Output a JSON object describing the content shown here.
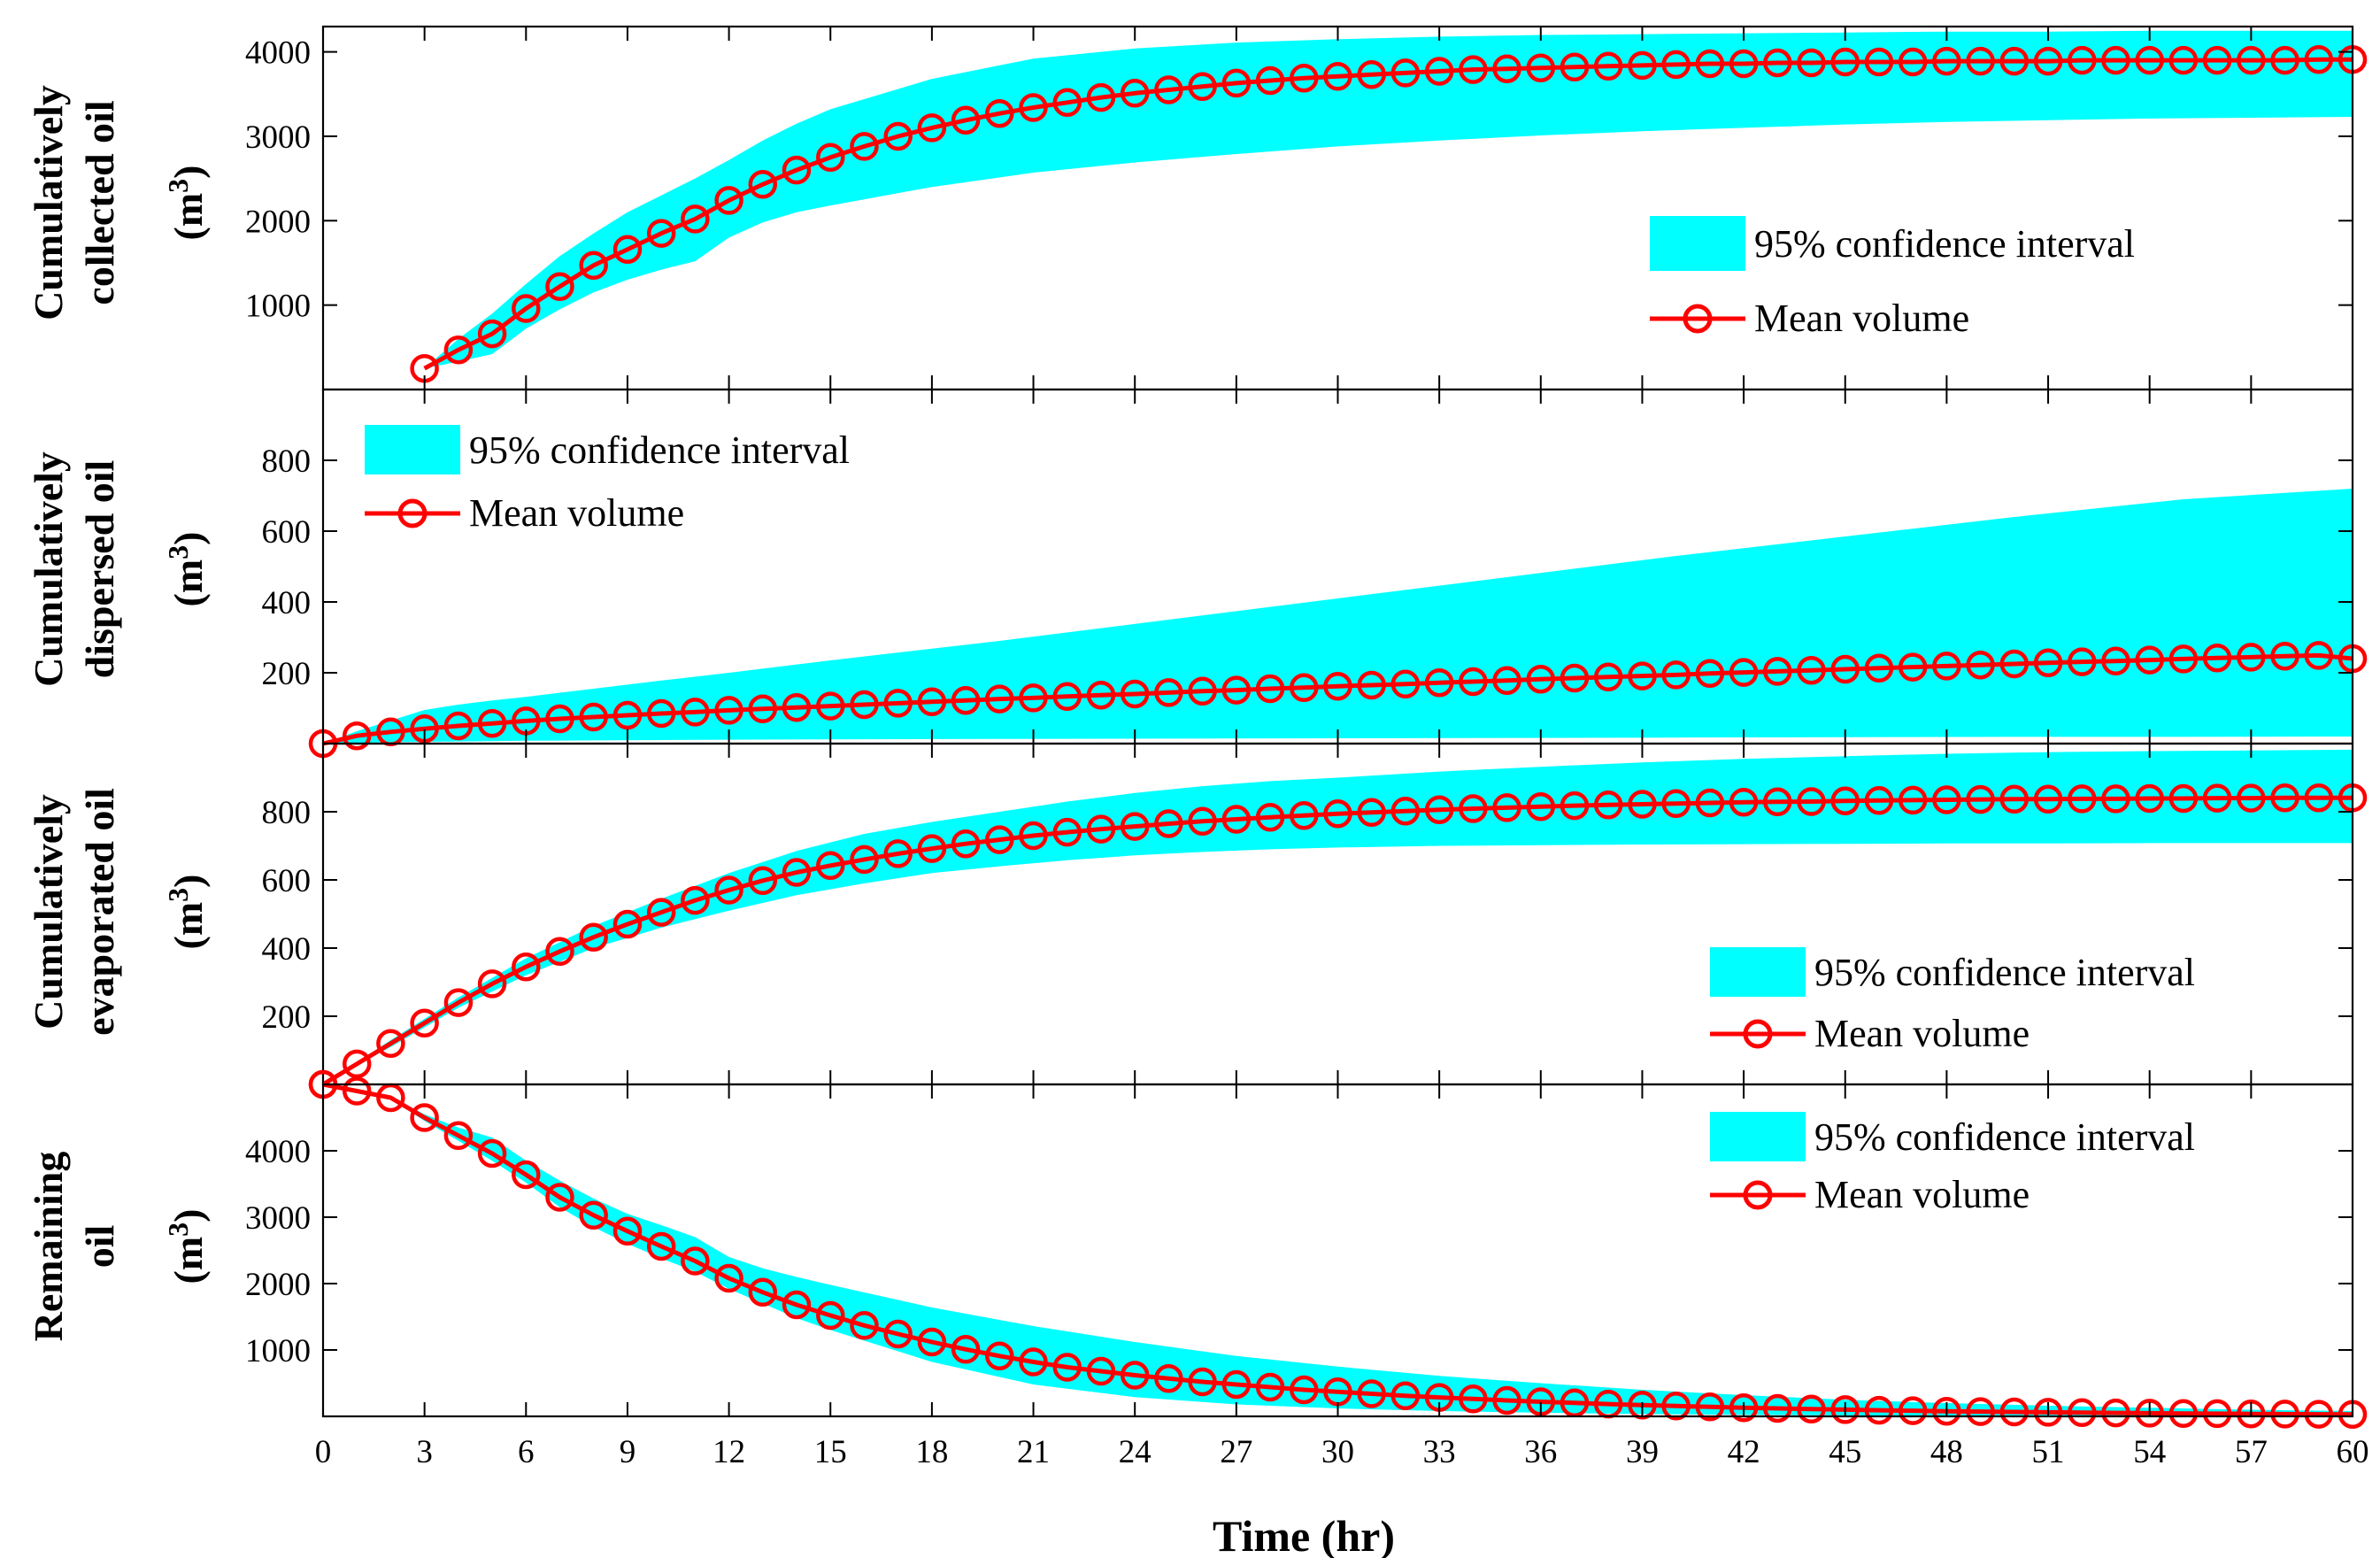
{
  "chart_data": [
    {
      "type": "line",
      "panel": "collected",
      "ylabel_lines": [
        "Cumulatively",
        "collected oil",
        "(m",
        "3",
        ")"
      ],
      "ylim": [
        0,
        4300
      ],
      "yticks": [
        1000,
        2000,
        3000,
        4000
      ],
      "xlim": [
        0,
        60
      ],
      "x": [
        3,
        4,
        5,
        6,
        7,
        8,
        9,
        10,
        11,
        12,
        13,
        14,
        15,
        16,
        17,
        18,
        19,
        20,
        21,
        22,
        23,
        24,
        25,
        26,
        27,
        28,
        29,
        30,
        31,
        32,
        33,
        34,
        35,
        36,
        37,
        38,
        39,
        40,
        41,
        42,
        43,
        44,
        45,
        46,
        47,
        48,
        49,
        50,
        51,
        52,
        53,
        54,
        55,
        56,
        57,
        58,
        59,
        60
      ],
      "series": [
        {
          "name": "Mean volume",
          "color": "#ff0000",
          "marker": "circle",
          "values": [
            250,
            470,
            660,
            960,
            1220,
            1470,
            1660,
            1850,
            2020,
            2240,
            2430,
            2600,
            2750,
            2880,
            3000,
            3100,
            3190,
            3270,
            3340,
            3400,
            3460,
            3510,
            3550,
            3590,
            3630,
            3660,
            3690,
            3710,
            3730,
            3750,
            3770,
            3790,
            3800,
            3810,
            3820,
            3830,
            3840,
            3850,
            3860,
            3860,
            3870,
            3870,
            3880,
            3880,
            3880,
            3890,
            3890,
            3890,
            3890,
            3900,
            3900,
            3900,
            3900,
            3900,
            3900,
            3900,
            3910,
            3910
          ]
        }
      ],
      "band": {
        "name": "95% confidence interval",
        "color": "#00ffff",
        "x": [
          3,
          4,
          5,
          6,
          7,
          8,
          9,
          10,
          11,
          12,
          13,
          14,
          15,
          18,
          21,
          24,
          27,
          30,
          33,
          36,
          39,
          42,
          45,
          48,
          51,
          54,
          57,
          60
        ],
        "lower": [
          250,
          330,
          420,
          720,
          950,
          1150,
          1300,
          1420,
          1520,
          1800,
          1980,
          2100,
          2180,
          2400,
          2570,
          2690,
          2790,
          2880,
          2950,
          3010,
          3060,
          3100,
          3140,
          3170,
          3190,
          3210,
          3220,
          3230
        ],
        "upper": [
          250,
          600,
          900,
          1250,
          1580,
          1850,
          2100,
          2300,
          2500,
          2720,
          2950,
          3150,
          3320,
          3680,
          3920,
          4040,
          4110,
          4150,
          4180,
          4200,
          4210,
          4220,
          4230,
          4240,
          4240,
          4250,
          4250,
          4250
        ]
      },
      "legend": {
        "band_label": "95% confidence interval",
        "line_label": "Mean volume",
        "location": "lower-right"
      }
    },
    {
      "type": "line",
      "panel": "dispersed",
      "ylabel_lines": [
        "Cumulatively",
        "dispersed oil",
        "(m",
        "3",
        ")"
      ],
      "ylim": [
        0,
        1000
      ],
      "yticks": [
        200,
        400,
        600,
        800
      ],
      "xlim": [
        0,
        60
      ],
      "x": [
        0,
        1,
        2,
        3,
        4,
        5,
        6,
        7,
        8,
        9,
        10,
        11,
        12,
        13,
        14,
        15,
        16,
        17,
        18,
        19,
        20,
        21,
        22,
        23,
        24,
        25,
        26,
        27,
        28,
        29,
        30,
        31,
        32,
        33,
        34,
        35,
        36,
        37,
        38,
        39,
        40,
        41,
        42,
        43,
        44,
        45,
        46,
        47,
        48,
        49,
        50,
        51,
        52,
        53,
        54,
        55,
        56,
        57,
        58,
        59,
        60
      ],
      "series": [
        {
          "name": "Mean volume",
          "color": "#ff0000",
          "marker": "circle",
          "values": [
            0,
            22,
            33,
            42,
            50,
            57,
            64,
            70,
            75,
            80,
            85,
            89,
            94,
            98,
            102,
            106,
            110,
            114,
            118,
            122,
            126,
            129,
            133,
            137,
            140,
            144,
            148,
            151,
            155,
            158,
            162,
            165,
            168,
            172,
            175,
            178,
            182,
            185,
            188,
            191,
            194,
            198,
            201,
            204,
            207,
            210,
            213,
            216,
            219,
            222,
            225,
            228,
            231,
            233,
            236,
            239,
            242,
            244,
            247,
            249,
            240
          ]
        }
      ],
      "band": {
        "name": "95% confidence interval",
        "color": "#00ffff",
        "x": [
          0,
          1,
          2,
          3,
          4,
          5,
          6,
          8,
          10,
          12,
          15,
          20,
          25,
          30,
          35,
          40,
          45,
          50,
          55,
          60
        ],
        "lower": [
          0,
          2,
          4,
          5,
          6,
          7,
          8,
          9,
          10,
          11,
          12,
          13,
          14,
          15,
          16,
          17,
          18,
          19,
          19,
          20
        ],
        "upper": [
          0,
          35,
          65,
          95,
          110,
          122,
          132,
          155,
          178,
          200,
          235,
          290,
          350,
          410,
          470,
          530,
          585,
          640,
          690,
          720
        ]
      },
      "legend": {
        "band_label": "95% confidence interval",
        "line_label": "Mean volume",
        "location": "upper-left"
      }
    },
    {
      "type": "line",
      "panel": "evaporated",
      "ylabel_lines": [
        "Cumulatively",
        "evaporated oil",
        "(m",
        "3",
        ")"
      ],
      "ylim": [
        0,
        1000
      ],
      "yticks": [
        200,
        400,
        600,
        800
      ],
      "xlim": [
        0,
        60
      ],
      "x": [
        0,
        1,
        2,
        3,
        4,
        5,
        6,
        7,
        8,
        9,
        10,
        11,
        12,
        13,
        14,
        15,
        16,
        17,
        18,
        19,
        20,
        21,
        22,
        23,
        24,
        25,
        26,
        27,
        28,
        29,
        30,
        31,
        32,
        33,
        34,
        35,
        36,
        37,
        38,
        39,
        40,
        41,
        42,
        43,
        44,
        45,
        46,
        47,
        48,
        49,
        50,
        51,
        52,
        53,
        54,
        55,
        56,
        57,
        58,
        59,
        60
      ],
      "series": [
        {
          "name": "Mean volume",
          "color": "#ff0000",
          "marker": "circle",
          "values": [
            0,
            60,
            120,
            180,
            240,
            295,
            345,
            390,
            432,
            470,
            505,
            540,
            570,
            598,
            622,
            642,
            660,
            677,
            692,
            706,
            718,
            730,
            740,
            749,
            757,
            765,
            772,
            778,
            784,
            789,
            794,
            798,
            802,
            806,
            809,
            812,
            815,
            818,
            820,
            822,
            824,
            826,
            828,
            829,
            830,
            832,
            833,
            834,
            835,
            836,
            837,
            837,
            838,
            838,
            839,
            839,
            840,
            840,
            841,
            841,
            841
          ]
        }
      ],
      "band": {
        "name": "95% confidence interval",
        "color": "#00ffff",
        "x": [
          0,
          2,
          4,
          6,
          8,
          10,
          12,
          14,
          16,
          18,
          20,
          22,
          24,
          26,
          28,
          30,
          33,
          36,
          39,
          42,
          45,
          48,
          51,
          54,
          57,
          60
        ],
        "lower": [
          0,
          110,
          225,
          320,
          400,
          460,
          510,
          555,
          590,
          620,
          640,
          658,
          672,
          682,
          690,
          695,
          700,
          702,
          704,
          705,
          706,
          707,
          707,
          708,
          708,
          708
        ],
        "upper": [
          0,
          130,
          255,
          370,
          465,
          545,
          620,
          685,
          735,
          770,
          800,
          830,
          855,
          875,
          890,
          900,
          918,
          932,
          945,
          955,
          963,
          970,
          975,
          978,
          980,
          982
        ]
      },
      "legend": {
        "band_label": "95% confidence interval",
        "line_label": "Mean volume",
        "location": "lower-right"
      }
    },
    {
      "type": "line",
      "panel": "remaining",
      "ylabel_lines": [
        "Remaining",
        "oil",
        "(m",
        "3",
        ")"
      ],
      "ylim": [
        0,
        5000
      ],
      "yticks": [
        1000,
        2000,
        3000,
        4000
      ],
      "xlim": [
        0,
        60
      ],
      "xticks": [
        0,
        3,
        6,
        9,
        12,
        15,
        18,
        21,
        24,
        27,
        30,
        33,
        36,
        39,
        42,
        45,
        48,
        51,
        54,
        57,
        60
      ],
      "xlabel": "Time (hr)",
      "x": [
        0,
        1,
        2,
        3,
        4,
        5,
        6,
        7,
        8,
        9,
        10,
        11,
        12,
        13,
        14,
        15,
        16,
        17,
        18,
        19,
        20,
        21,
        22,
        23,
        24,
        25,
        26,
        27,
        28,
        29,
        30,
        31,
        32,
        33,
        34,
        35,
        36,
        37,
        38,
        39,
        40,
        41,
        42,
        43,
        44,
        45,
        46,
        47,
        48,
        49,
        50,
        51,
        52,
        53,
        54,
        55,
        56,
        57,
        58,
        59,
        60
      ],
      "series": [
        {
          "name": "Mean volume",
          "color": "#ff0000",
          "marker": "circle",
          "values": [
            5000,
            4900,
            4800,
            4500,
            4230,
            3960,
            3640,
            3300,
            3030,
            2790,
            2560,
            2340,
            2080,
            1870,
            1680,
            1520,
            1370,
            1240,
            1120,
            1010,
            910,
            820,
            740,
            680,
            620,
            570,
            520,
            480,
            440,
            400,
            370,
            340,
            310,
            285,
            262,
            240,
            220,
            202,
            185,
            170,
            156,
            143,
            131,
            120,
            110,
            101,
            92,
            85,
            78,
            72,
            66,
            61,
            56,
            52,
            48,
            44,
            41,
            38,
            35,
            32,
            30
          ]
        }
      ],
      "band": {
        "name": "95% confidence interval",
        "color": "#00ffff",
        "x": [
          0,
          2,
          3,
          4,
          5,
          6,
          7,
          8,
          9,
          10,
          11,
          12,
          13,
          14,
          15,
          18,
          21,
          24,
          27,
          30,
          33,
          36,
          39,
          42,
          45,
          48,
          51,
          54,
          57,
          60
        ],
        "lower": [
          5000,
          4780,
          4450,
          4150,
          3850,
          3520,
          3150,
          2850,
          2600,
          2380,
          2180,
          1920,
          1700,
          1480,
          1300,
          820,
          480,
          290,
          180,
          120,
          80,
          55,
          35,
          22,
          15,
          10,
          6,
          4,
          3,
          2
        ],
        "upper": [
          5000,
          4820,
          4550,
          4350,
          4200,
          3850,
          3550,
          3280,
          3050,
          2880,
          2700,
          2400,
          2230,
          2100,
          1980,
          1640,
          1360,
          1120,
          910,
          750,
          610,
          500,
          400,
          320,
          250,
          200,
          160,
          130,
          100,
          80
        ]
      },
      "legend": {
        "band_label": "95% confidence interval",
        "line_label": "Mean volume",
        "location": "upper-right"
      }
    }
  ]
}
